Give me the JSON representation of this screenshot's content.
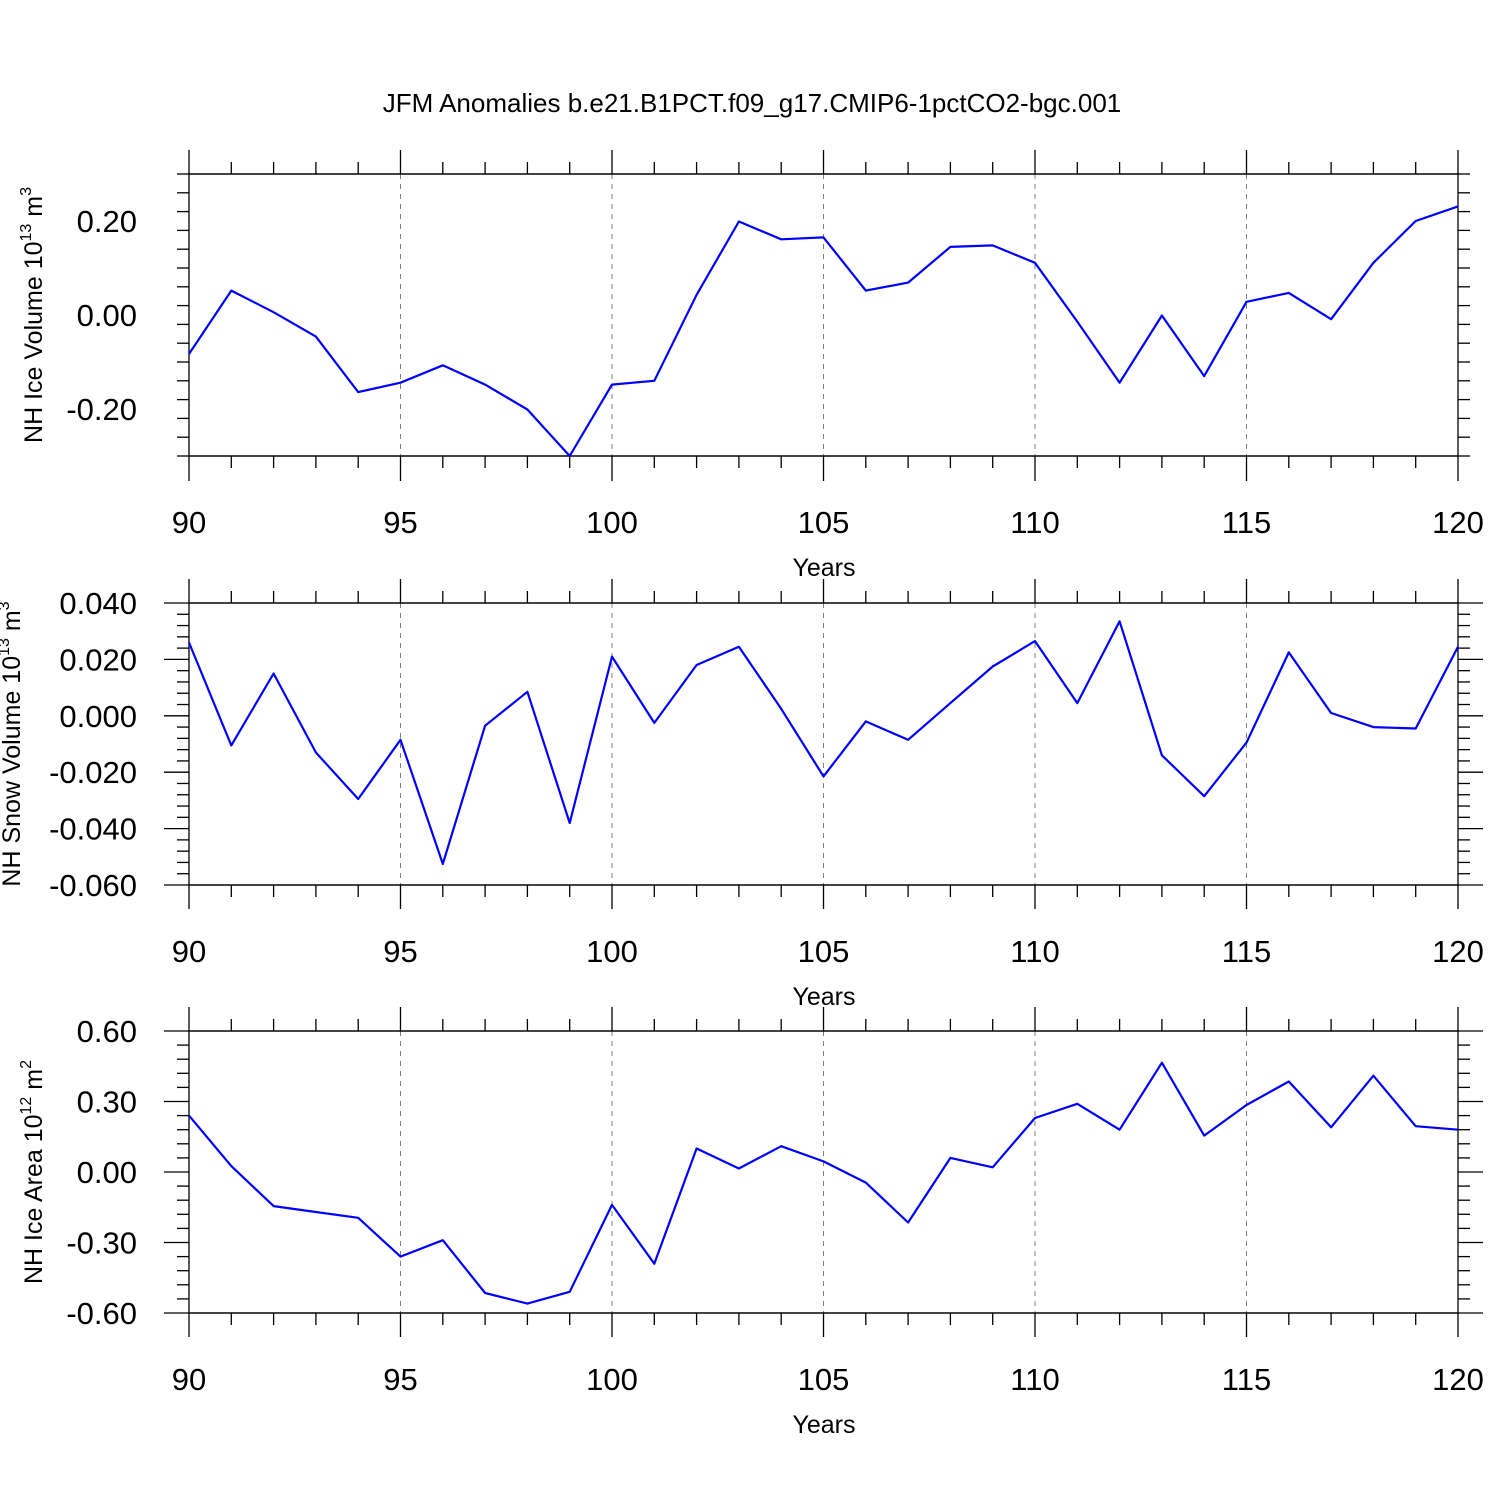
{
  "figure": {
    "title": "JFM Anomalies b.e21.B1PCT.f09_g17.CMIP6-1pctCO2-bgc.001",
    "line_color": "#0000ff",
    "grid_color": "#808080"
  },
  "chart_data": [
    {
      "type": "line",
      "ylabel": {
        "main": "NH Ice Volume 10",
        "sup1": "13",
        "mid": " m",
        "sup2": "3"
      },
      "xlabel": "Years",
      "xlim": [
        90,
        120
      ],
      "ylim": [
        -0.3,
        0.3
      ],
      "xticks": [
        90,
        95,
        100,
        105,
        110,
        115,
        120
      ],
      "yticks": [
        -0.2,
        0.0,
        0.2
      ],
      "ytick_labels": [
        "-0.20",
        "0.00",
        "0.20"
      ],
      "grid_x": true,
      "x": [
        90,
        91,
        92,
        93,
        94,
        95,
        96,
        97,
        98,
        99,
        100,
        101,
        102,
        103,
        104,
        105,
        106,
        107,
        108,
        109,
        110,
        111,
        112,
        113,
        114,
        115,
        116,
        117,
        118,
        119,
        120
      ],
      "values": [
        -0.083,
        0.052,
        0.006,
        -0.046,
        -0.164,
        -0.144,
        -0.107,
        -0.148,
        -0.201,
        -0.3,
        -0.148,
        -0.14,
        0.043,
        0.199,
        0.161,
        0.165,
        0.052,
        0.069,
        0.145,
        0.148,
        0.111,
        -0.014,
        -0.144,
        -0.001,
        -0.13,
        0.028,
        0.047,
        -0.009,
        0.111,
        0.2,
        0.231
      ]
    },
    {
      "type": "line",
      "ylabel": {
        "main": "NH Snow Volume 10",
        "sup1": "13",
        "mid": " m",
        "sup2": "3"
      },
      "xlabel": "Years",
      "xlim": [
        90,
        120
      ],
      "ylim": [
        -0.06,
        0.04
      ],
      "xticks": [
        90,
        95,
        100,
        105,
        110,
        115,
        120
      ],
      "yticks": [
        -0.06,
        -0.04,
        -0.02,
        0.0,
        0.02,
        0.04
      ],
      "ytick_labels": [
        "-0.060",
        "-0.040",
        "-0.020",
        "0.000",
        "0.020",
        "0.040"
      ],
      "grid_x": true,
      "x": [
        90,
        91,
        92,
        93,
        94,
        95,
        96,
        97,
        98,
        99,
        100,
        101,
        102,
        103,
        104,
        105,
        106,
        107,
        108,
        109,
        110,
        111,
        112,
        113,
        114,
        115,
        116,
        117,
        118,
        119,
        120
      ],
      "values": [
        0.026,
        -0.0105,
        0.015,
        -0.013,
        -0.0295,
        -0.0085,
        -0.0525,
        -0.0035,
        0.0085,
        -0.038,
        0.021,
        -0.0025,
        0.018,
        0.0245,
        0.0025,
        -0.0215,
        -0.002,
        -0.0085,
        0.0045,
        0.0175,
        0.0265,
        0.0045,
        0.0335,
        -0.014,
        -0.0285,
        -0.0095,
        0.0225,
        0.001,
        -0.004,
        -0.0045,
        0.0245
      ]
    },
    {
      "type": "line",
      "ylabel": {
        "main": "NH Ice Area 10",
        "sup1": "12",
        "mid": " m",
        "sup2": "2"
      },
      "xlabel": "Years",
      "xlim": [
        90,
        120
      ],
      "ylim": [
        -0.6,
        0.6
      ],
      "xticks": [
        90,
        95,
        100,
        105,
        110,
        115,
        120
      ],
      "yticks": [
        -0.6,
        -0.3,
        0.0,
        0.3,
        0.6
      ],
      "ytick_labels": [
        "-0.60",
        "-0.30",
        "0.00",
        "0.30",
        "0.60"
      ],
      "grid_x": true,
      "x": [
        90,
        91,
        92,
        93,
        94,
        95,
        96,
        97,
        98,
        99,
        100,
        101,
        102,
        103,
        104,
        105,
        106,
        107,
        108,
        109,
        110,
        111,
        112,
        113,
        114,
        115,
        116,
        117,
        118,
        119,
        120
      ],
      "values": [
        0.24,
        0.025,
        -0.145,
        -0.17,
        -0.195,
        -0.36,
        -0.29,
        -0.515,
        -0.56,
        -0.51,
        -0.14,
        -0.39,
        0.1,
        0.015,
        0.11,
        0.045,
        -0.045,
        -0.215,
        0.06,
        0.02,
        0.23,
        0.29,
        0.18,
        0.465,
        0.155,
        0.285,
        0.385,
        0.19,
        0.41,
        0.195,
        0.18
      ]
    }
  ]
}
